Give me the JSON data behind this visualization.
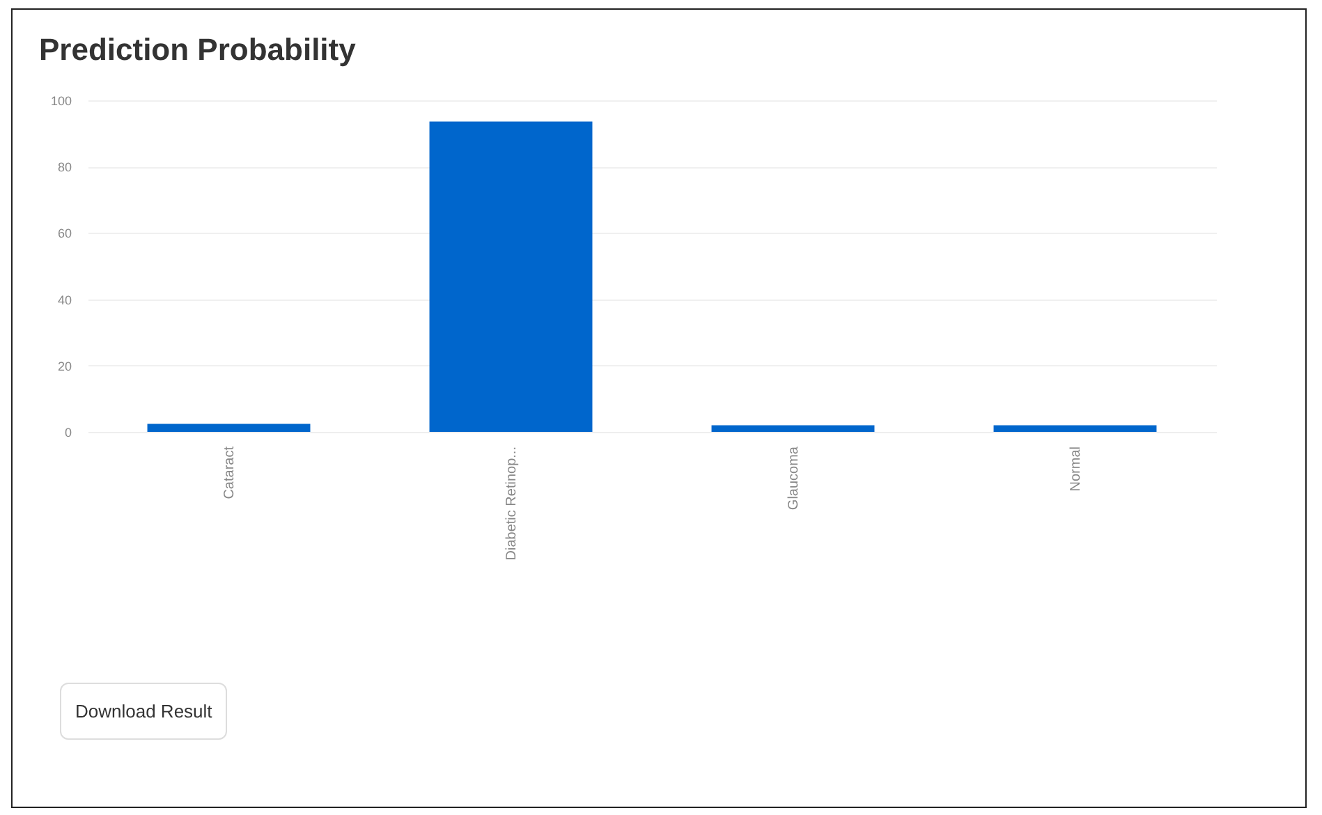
{
  "chart_data": {
    "type": "bar",
    "title": "Prediction Probability",
    "categories": [
      "Cataract",
      "Diabetic Retinop...",
      "Glaucoma",
      "Normal"
    ],
    "values": [
      2.4,
      93.6,
      2,
      2
    ],
    "color": "#0066cc",
    "ylim": [
      0,
      100
    ],
    "yticks": [
      0,
      20,
      40,
      60,
      80,
      100
    ],
    "grid": "y",
    "annotations": [
      "Download Result"
    ]
  }
}
